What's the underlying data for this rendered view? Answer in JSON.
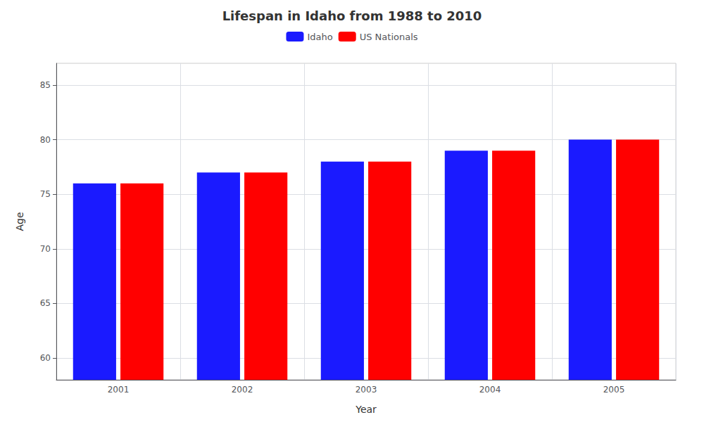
{
  "chart_data": {
    "type": "bar",
    "title": "Lifespan in Idaho from 1988 to 2010",
    "xlabel": "Year",
    "ylabel": "Age",
    "categories": [
      "2001",
      "2002",
      "2003",
      "2004",
      "2005"
    ],
    "series": [
      {
        "name": "Idaho",
        "color": "#1a1aff",
        "values": [
          76,
          77,
          78,
          79,
          80
        ]
      },
      {
        "name": "US Nationals",
        "color": "#ff0000",
        "values": [
          76,
          77,
          78,
          79,
          80
        ]
      }
    ],
    "ylim": [
      58,
      87
    ],
    "yticks": [
      60,
      65,
      70,
      75,
      80,
      85
    ],
    "grid": true,
    "legend": "top"
  }
}
